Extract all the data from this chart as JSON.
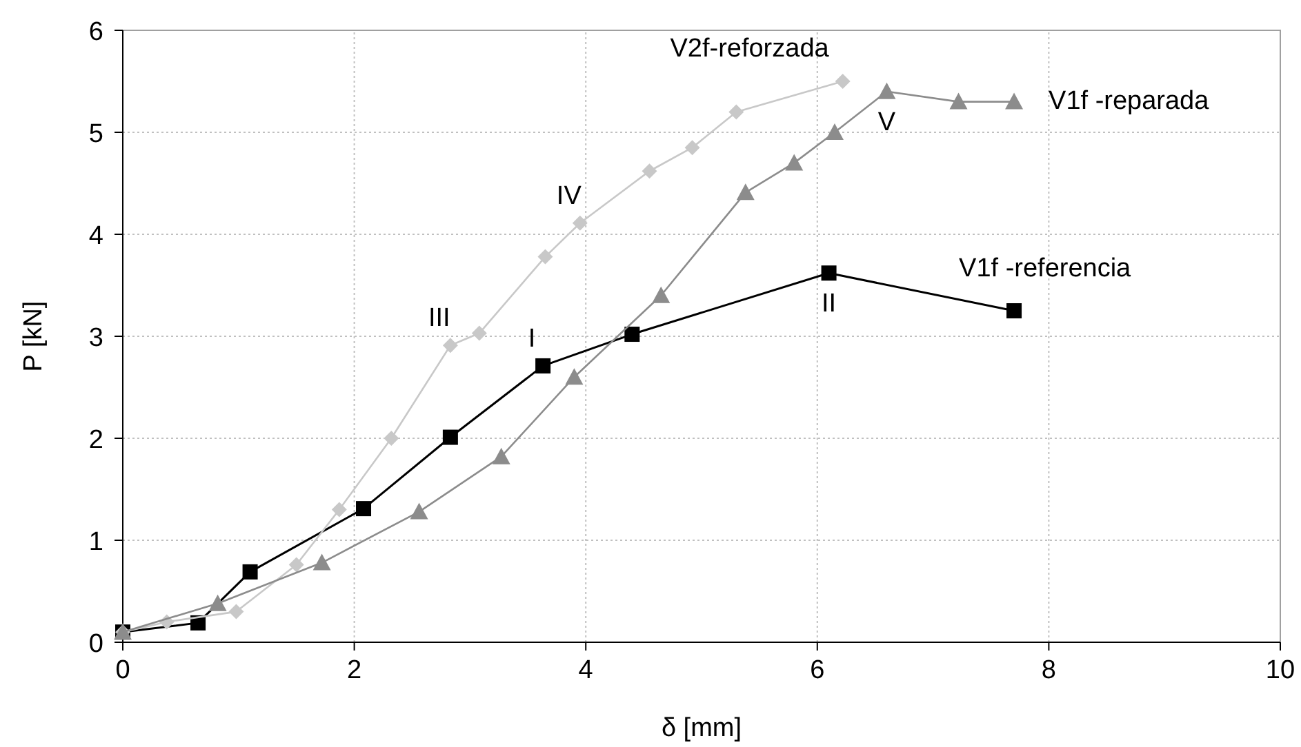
{
  "chart_data": {
    "type": "line",
    "xlabel": "δ [mm]",
    "ylabel": "P [kN]",
    "xlim": [
      0,
      10
    ],
    "ylim": [
      0,
      6
    ],
    "xticks": [
      0,
      2,
      4,
      6,
      8,
      10
    ],
    "yticks": [
      0,
      1,
      2,
      3,
      4,
      5,
      6
    ],
    "grid": true,
    "line_style": "solid",
    "series": [
      {
        "name": "V1f -referencia",
        "color": "#000000",
        "marker": "square",
        "x": [
          0,
          0.65,
          1.1,
          2.08,
          2.83,
          3.63,
          4.4,
          6.1,
          7.7
        ],
        "values": [
          0.1,
          0.19,
          0.69,
          1.31,
          2.01,
          2.71,
          3.02,
          3.62,
          3.25
        ]
      },
      {
        "name": "V2f-reforzada",
        "color": "#c8c8c8",
        "marker": "diamond",
        "x": [
          0,
          0.38,
          0.98,
          1.5,
          1.87,
          2.32,
          2.83,
          3.08,
          3.65,
          3.95,
          4.55,
          4.92,
          5.3,
          6.22
        ],
        "values": [
          0.1,
          0.2,
          0.3,
          0.76,
          1.3,
          2.0,
          2.91,
          3.03,
          3.78,
          4.11,
          4.62,
          4.85,
          5.2,
          5.5
        ]
      },
      {
        "name": "V1f -reparada",
        "color": "#8c8c8c",
        "marker": "triangle",
        "x": [
          0,
          0.82,
          1.72,
          2.56,
          3.27,
          3.9,
          4.65,
          5.38,
          5.8,
          6.15,
          6.6,
          7.22,
          7.7
        ],
        "values": [
          0.1,
          0.38,
          0.78,
          1.28,
          1.82,
          2.6,
          3.4,
          4.41,
          4.7,
          5.0,
          5.4,
          5.3,
          5.3
        ]
      }
    ],
    "annotations": [
      {
        "text": "I",
        "x": 3.63,
        "y": 2.71
      },
      {
        "text": "II",
        "x": 6.1,
        "y": 3.62
      },
      {
        "text": "III",
        "x": 2.83,
        "y": 2.91
      },
      {
        "text": "IV",
        "x": 3.95,
        "y": 4.11
      },
      {
        "text": "V",
        "x": 6.6,
        "y": 5.4
      }
    ]
  }
}
